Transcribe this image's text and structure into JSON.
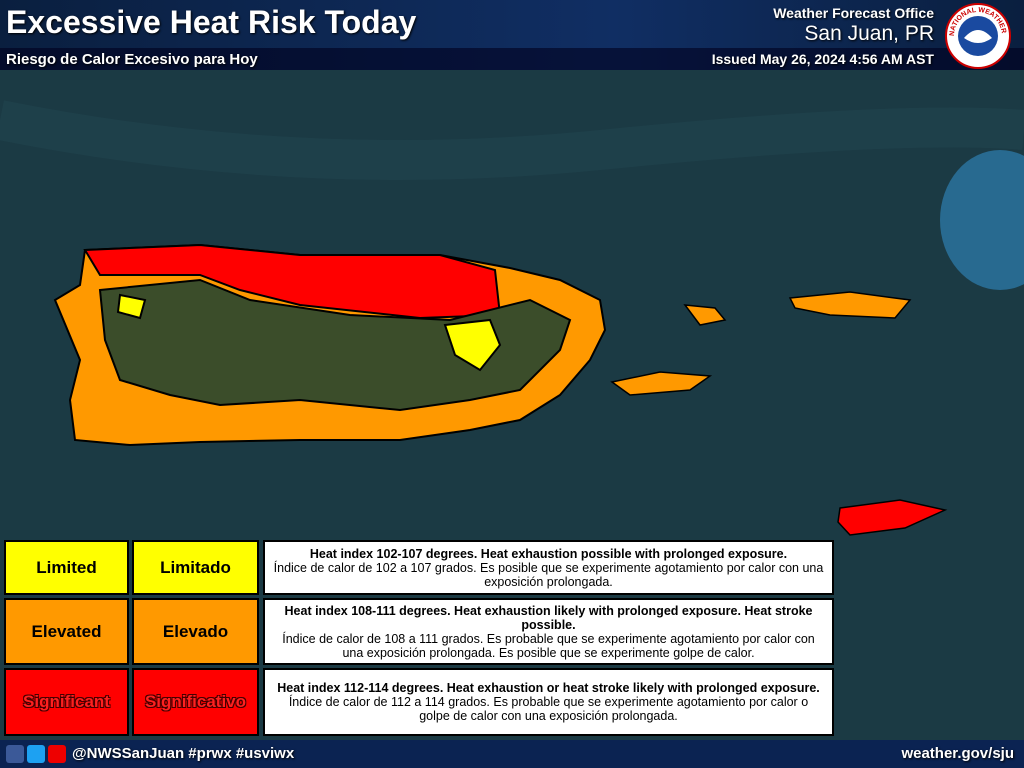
{
  "header": {
    "title": "Excessive Heat Risk Today",
    "subtitle": "Riesgo de Calor Excesivo para Hoy",
    "office": "Weather Forecast Office",
    "location": "San Juan, PR",
    "issued": "Issued May 26, 2024 4:56 AM AST",
    "logo": "NATIONAL WEATHER SERVICE"
  },
  "legend": {
    "rows": [
      {
        "english": "Limited",
        "spanish": "Limitado",
        "color": "#ffff00",
        "description_en": "Heat index 102-107 degrees. Heat exhaustion possible with prolonged exposure.",
        "description_es": "Índice de calor de 102 a 107 grados. Es posible que se experimente agotamiento por calor con una exposición prolongada."
      },
      {
        "english": "Elevated",
        "spanish": "Elevado",
        "color": "#ff9900",
        "description_en": "Heat index 108-111 degrees. Heat exhaustion likely with prolonged exposure. Heat stroke possible.",
        "description_es": "Índice de calor de 108 a 111 grados. Es probable que se experimente agotamiento por calor con una exposición prolongada. Es posible que se experimente golpe de calor."
      },
      {
        "english": "Significant",
        "spanish": "Significativo",
        "color": "#ff0000",
        "description_en": "Heat index 112-114 degrees. Heat exhaustion or heat stroke likely with prolonged exposure.",
        "description_es": "Índice de calor de 112 a 114 grados. Es probable que se experimente agotamiento por calor o golpe de calor con una exposición prolongada."
      }
    ]
  },
  "footer": {
    "social": "@NWSSanJuan #prwx #usviwx",
    "url": "weather.gov/sju"
  }
}
